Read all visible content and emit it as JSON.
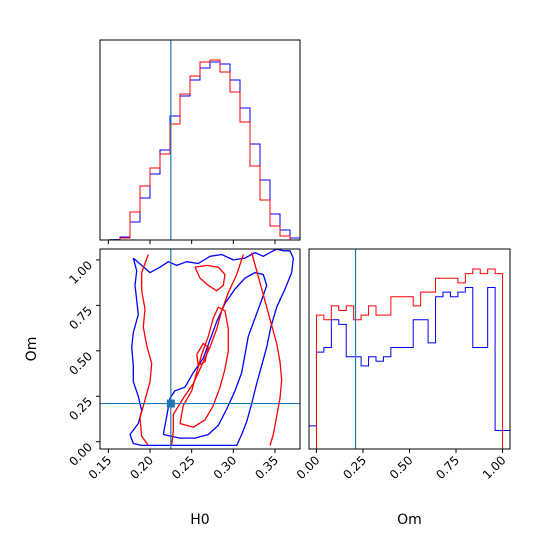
{
  "chart_data": {
    "type": "corner",
    "colors": {
      "sample_a": "#0000ff",
      "sample_b": "#ff0000",
      "truth": "#1f77b4",
      "frame": "#000000"
    },
    "truth": {
      "H0": 0.225,
      "Om": 0.21
    },
    "panels": [
      {
        "id": "hist_H0",
        "type": "histogram-step",
        "xlim": [
          0.14,
          0.38
        ],
        "show_tick_labels": false,
        "bins": [
          0.14,
          0.152,
          0.164,
          0.176,
          0.188,
          0.2,
          0.212,
          0.224,
          0.236,
          0.248,
          0.26,
          0.272,
          0.284,
          0.296,
          0.308,
          0.32,
          0.332,
          0.344,
          0.356,
          0.368,
          0.38
        ],
        "series": [
          {
            "name": "",
            "color": "#0000ff",
            "values": [
              0,
              0.2,
              1.5,
              9,
              21,
              33,
              45,
              62,
              72,
              80,
              86,
              89,
              88,
              80,
              66,
              48,
              30,
              13,
              5,
              1
            ]
          },
          {
            "name": "",
            "color": "#ff0000",
            "values": [
              0,
              0,
              1,
              14,
              27,
              36,
              43,
              58,
              73,
              82,
              89,
              90,
              84,
              74,
              59,
              37,
              20,
              7,
              2,
              0
            ]
          }
        ]
      },
      {
        "id": "hist_Om",
        "type": "histogram-step",
        "xlim": [
          -0.04,
          1.04
        ],
        "xticks": [
          "0.00",
          "0.25",
          "0.50",
          "0.75",
          "1.00"
        ],
        "xtick_values": [
          0,
          0.25,
          0.5,
          0.75,
          1.0
        ],
        "xlabel": "Om",
        "bins": [
          -0.04,
          0.0,
          0.04,
          0.08,
          0.12,
          0.16,
          0.2,
          0.24,
          0.28,
          0.32,
          0.36,
          0.4,
          0.44,
          0.48,
          0.52,
          0.56,
          0.6,
          0.64,
          0.68,
          0.72,
          0.76,
          0.8,
          0.84,
          0.88,
          0.92,
          0.96,
          1.0,
          1.04
        ],
        "series": [
          {
            "name": "",
            "color": "#0000ff",
            "values": [
              5,
              21,
              22,
              28,
              27,
              20,
              20,
              18,
              20,
              19,
              20,
              22,
              22,
              22,
              28,
              28,
              23,
              33,
              34,
              33,
              34,
              35,
              22,
              22,
              35,
              4,
              4
            ]
          },
          {
            "name": "",
            "color": "#ff0000",
            "values": [
              0,
              29,
              28,
              31,
              30,
              31,
              28,
              29,
              31,
              29,
              29,
              33,
              33,
              33,
              31,
              34,
              34,
              37,
              37,
              37,
              36,
              38,
              39,
              38,
              39,
              38,
              0
            ]
          }
        ]
      },
      {
        "id": "contour_H0_Om",
        "type": "contour",
        "xlim": [
          0.14,
          0.38
        ],
        "ylim": [
          -0.04,
          1.06
        ],
        "xticks": [
          "0.15",
          "0.20",
          "0.25",
          "0.30",
          "0.35"
        ],
        "xtick_values": [
          0.15,
          0.2,
          0.25,
          0.3,
          0.35
        ],
        "yticks": [
          "0.00",
          "0.25",
          "0.50",
          "0.75",
          "1.00"
        ],
        "ytick_values": [
          0,
          0.25,
          0.5,
          0.75,
          1.0
        ],
        "xlabel": "H0",
        "ylabel": "Om",
        "series": [
          {
            "name": "",
            "color": "#0000ff",
            "contours": [
              [
                [
                  0.18,
                  1.01
                ],
                [
                  0.19,
                  0.97
                ],
                [
                  0.2,
                  0.93
                ],
                [
                  0.212,
                  0.96
                ],
                [
                  0.222,
                  0.99
                ],
                [
                  0.232,
                  0.97
                ],
                [
                  0.244,
                  0.99
                ],
                [
                  0.258,
                  0.98
                ],
                [
                  0.272,
                  1.02
                ],
                [
                  0.286,
                  1.03
                ],
                [
                  0.3,
                  1.0
                ],
                [
                  0.314,
                  1.01
                ],
                [
                  0.326,
                  1.04
                ],
                [
                  0.336,
                  1.02
                ],
                [
                  0.344,
                  1.04
                ],
                [
                  0.352,
                  1.06
                ],
                [
                  0.36,
                  1.05
                ],
                [
                  0.368,
                  1.05
                ],
                [
                  0.372,
                  1.01
                ],
                [
                  0.37,
                  0.93
                ],
                [
                  0.362,
                  0.84
                ],
                [
                  0.352,
                  0.74
                ],
                [
                  0.345,
                  0.63
                ],
                [
                  0.34,
                  0.52
                ],
                [
                  0.334,
                  0.42
                ],
                [
                  0.328,
                  0.32
                ],
                [
                  0.322,
                  0.21
                ],
                [
                  0.316,
                  0.11
                ],
                [
                  0.31,
                  0.04
                ],
                [
                  0.304,
                  -0.02
                ],
                [
                  0.288,
                  -0.02
                ],
                [
                  0.27,
                  -0.02
                ],
                [
                  0.252,
                  -0.02
                ],
                [
                  0.236,
                  -0.02
                ],
                [
                  0.22,
                  -0.02
                ],
                [
                  0.205,
                  -0.02
                ],
                [
                  0.19,
                  -0.02
                ],
                [
                  0.18,
                  -0.01
                ],
                [
                  0.176,
                  0.04
                ],
                [
                  0.186,
                  0.1
                ],
                [
                  0.19,
                  0.17
                ],
                [
                  0.186,
                  0.25
                ],
                [
                  0.18,
                  0.33
                ],
                [
                  0.18,
                  0.42
                ],
                [
                  0.178,
                  0.52
                ],
                [
                  0.18,
                  0.6
                ],
                [
                  0.186,
                  0.7
                ],
                [
                  0.184,
                  0.78
                ],
                [
                  0.182,
                  0.86
                ],
                [
                  0.184,
                  0.94
                ],
                [
                  0.18,
                  1.01
                ]
              ],
              [
                [
                  0.216,
                  0.04
                ],
                [
                  0.22,
                  0.14
                ],
                [
                  0.224,
                  0.24
                ],
                [
                  0.23,
                  0.28
                ],
                [
                  0.242,
                  0.3
                ],
                [
                  0.252,
                  0.38
                ],
                [
                  0.264,
                  0.46
                ],
                [
                  0.272,
                  0.56
                ],
                [
                  0.28,
                  0.66
                ],
                [
                  0.29,
                  0.76
                ],
                [
                  0.302,
                  0.84
                ],
                [
                  0.314,
                  0.9
                ],
                [
                  0.326,
                  0.93
                ],
                [
                  0.336,
                  0.92
                ],
                [
                  0.34,
                  0.86
                ],
                [
                  0.334,
                  0.78
                ],
                [
                  0.326,
                  0.68
                ],
                [
                  0.318,
                  0.58
                ],
                [
                  0.314,
                  0.48
                ],
                [
                  0.31,
                  0.38
                ],
                [
                  0.302,
                  0.28
                ],
                [
                  0.292,
                  0.18
                ],
                [
                  0.282,
                  0.09
                ],
                [
                  0.27,
                  0.04
                ],
                [
                  0.254,
                  0.02
                ],
                [
                  0.236,
                  0.02
                ],
                [
                  0.216,
                  0.04
                ]
              ]
            ]
          },
          {
            "name": "",
            "color": "#ff0000",
            "contours": [
              [
                [
                  0.198,
                  1.03
                ],
                [
                  0.19,
                  0.93
                ],
                [
                  0.19,
                  0.83
                ],
                [
                  0.194,
                  0.73
                ],
                [
                  0.192,
                  0.63
                ],
                [
                  0.196,
                  0.53
                ],
                [
                  0.202,
                  0.43
                ],
                [
                  0.2,
                  0.33
                ],
                [
                  0.194,
                  0.23
                ],
                [
                  0.188,
                  0.13
                ],
                [
                  0.19,
                  0.03
                ],
                [
                  0.198,
                  -0.02
                ]
              ],
              [
                [
                  0.226,
                  -0.02
                ],
                [
                  0.228,
                  0.06
                ],
                [
                  0.228,
                  0.15
                ],
                [
                  0.24,
                  0.24
                ],
                [
                  0.252,
                  0.32
                ],
                [
                  0.262,
                  0.42
                ],
                [
                  0.272,
                  0.52
                ],
                [
                  0.28,
                  0.62
                ],
                [
                  0.286,
                  0.72
                ],
                [
                  0.294,
                  0.82
                ],
                [
                  0.304,
                  0.92
                ],
                [
                  0.312,
                  1.03
                ]
              ],
              [
                [
                  0.254,
                  0.96
                ],
                [
                  0.268,
                  0.97
                ],
                [
                  0.282,
                  0.96
                ],
                [
                  0.29,
                  0.92
                ],
                [
                  0.288,
                  0.86
                ],
                [
                  0.28,
                  0.83
                ],
                [
                  0.27,
                  0.86
                ],
                [
                  0.26,
                  0.9
                ],
                [
                  0.254,
                  0.96
                ]
              ],
              [
                [
                  0.322,
                  1.04
                ],
                [
                  0.328,
                  0.94
                ],
                [
                  0.334,
                  0.84
                ],
                [
                  0.34,
                  0.74
                ],
                [
                  0.346,
                  0.64
                ],
                [
                  0.352,
                  0.54
                ],
                [
                  0.356,
                  0.44
                ],
                [
                  0.358,
                  0.34
                ],
                [
                  0.356,
                  0.24
                ],
                [
                  0.352,
                  0.14
                ],
                [
                  0.348,
                  0.04
                ],
                [
                  0.344,
                  -0.02
                ]
              ],
              [
                [
                  0.236,
                  0.1
                ],
                [
                  0.24,
                  0.2
                ],
                [
                  0.25,
                  0.28
                ],
                [
                  0.256,
                  0.38
                ],
                [
                  0.262,
                  0.48
                ],
                [
                  0.27,
                  0.58
                ],
                [
                  0.276,
                  0.68
                ],
                [
                  0.282,
                  0.74
                ],
                [
                  0.29,
                  0.72
                ],
                [
                  0.294,
                  0.62
                ],
                [
                  0.294,
                  0.5
                ],
                [
                  0.29,
                  0.4
                ],
                [
                  0.284,
                  0.3
                ],
                [
                  0.276,
                  0.2
                ],
                [
                  0.266,
                  0.12
                ],
                [
                  0.252,
                  0.08
                ],
                [
                  0.236,
                  0.1
                ]
              ],
              [
                [
                  0.256,
                  0.48
                ],
                [
                  0.264,
                  0.54
                ],
                [
                  0.27,
                  0.52
                ],
                [
                  0.266,
                  0.44
                ],
                [
                  0.258,
                  0.42
                ],
                [
                  0.256,
                  0.48
                ]
              ]
            ]
          }
        ],
        "truth_marker": {
          "H0": 0.225,
          "Om": 0.21
        }
      }
    ]
  }
}
